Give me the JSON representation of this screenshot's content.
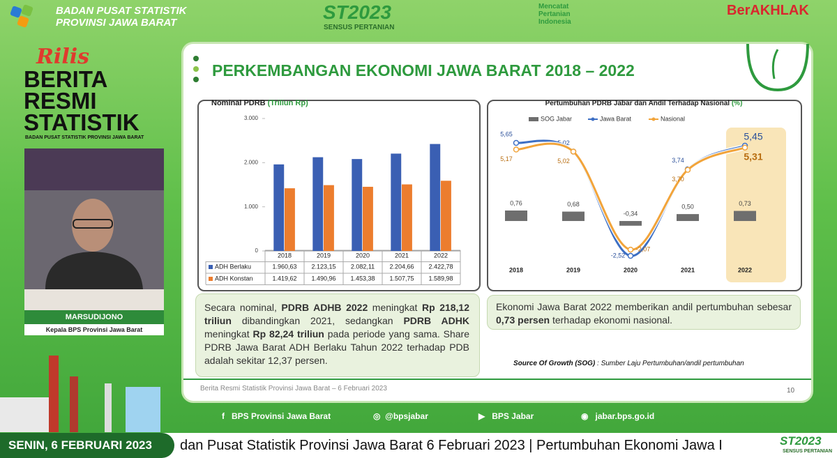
{
  "header": {
    "org": [
      "BADAN PUSAT STATISTIK",
      "PROVINSI JAWA BARAT"
    ],
    "st_logo": "ST2023",
    "st_sub": "SENSUS PERTANIAN",
    "campaign": "Mencatat Pertanian Indonesia",
    "berakhlak": "BerAKHLAK"
  },
  "sidebar": {
    "rilis": "Rilis",
    "brs": [
      "BERITA",
      "RESMI",
      "STATISTIK"
    ],
    "brs_sub": "BADAN PUSAT STATISTIK PROVINSI JAWA BARAT",
    "speaker_name": "MARSUDIJONO",
    "speaker_role": "Kepala BPS Provinsi Jawa Barat"
  },
  "slide": {
    "title": "PERKEMBANGAN EKONOMI JAWA BARAT 2018 – 2022",
    "left_text": [
      {
        "text": "Secara nominal, ",
        "bold": false
      },
      {
        "text": "PDRB ADHB 2022",
        "bold": true
      },
      {
        "text": " meningkat ",
        "bold": false
      },
      {
        "text": "Rp 218,12 triliun",
        "bold": true
      },
      {
        "text": " dibandingkan 2021, sedangkan ",
        "bold": false
      },
      {
        "text": "PDRB ADHK",
        "bold": true
      },
      {
        "text": " meningkat ",
        "bold": false
      },
      {
        "text": "Rp 82,24 triliun",
        "bold": true
      },
      {
        "text": " pada periode yang sama. Share PDRB Jawa Barat ADH Berlaku Tahun 2022 terhadap PDB adalah sekitar 12,37 persen.",
        "bold": false
      }
    ],
    "right_text": [
      {
        "text": "Ekonomi Jawa Barat 2022 memberikan andil pertumbuhan sebesar ",
        "bold": false
      },
      {
        "text": "0,73 persen",
        "bold": true
      },
      {
        "text": " terhadap ekonomi nasional.",
        "bold": false
      }
    ],
    "sog_note": [
      {
        "text": "Source Of Growth (SOG)",
        "bold": true
      },
      {
        "text": " : Sumber Laju Pertumbuhan/andil pertumbuhan",
        "bold": false
      }
    ],
    "source": "Berita Resmi Statistik Provinsi Jawa Barat – 6 Februari 2023",
    "page": "10"
  },
  "chart_data": [
    {
      "type": "bar",
      "title": "Nominal PDRB",
      "title_unit": "(Triliun Rp)",
      "categories": [
        "2018",
        "2019",
        "2020",
        "2021",
        "2022"
      ],
      "series": [
        {
          "name": "ADH Berlaku",
          "color": "#3a5fb3",
          "values": [
            1960.63,
            2123.15,
            2082.11,
            2204.66,
            2422.78
          ],
          "value_labels": [
            "1.960,63",
            "2.123,15",
            "2.082,11",
            "2.204,66",
            "2.422,78"
          ]
        },
        {
          "name": "ADH Konstan",
          "color": "#ec7d2e",
          "values": [
            1419.62,
            1490.96,
            1453.38,
            1507.75,
            1589.98
          ],
          "value_labels": [
            "1.419,62",
            "1.490,96",
            "1.453,38",
            "1.507,75",
            "1.589,98"
          ]
        }
      ],
      "ylim": [
        0,
        3000
      ],
      "yticks": [
        0,
        {
          "value": 1000,
          "label": "1.000"
        },
        {
          "value": 2000,
          "label": "2.000"
        },
        {
          "value": 3000,
          "label": "3.000"
        }
      ],
      "grid": false
    },
    {
      "type": "line",
      "title": "Pertumbuhan PDRB Jabar dan Andil Terhadap Nasional",
      "title_unit": "(%)",
      "categories": [
        "2018",
        "2019",
        "2020",
        "2021",
        "2022"
      ],
      "series": [
        {
          "name": "SOG Jabar",
          "type": "bar",
          "color": "#6e6e6e",
          "values": [
            0.76,
            0.68,
            -0.34,
            0.5,
            0.73
          ],
          "value_labels": [
            "0,76",
            "0,68",
            "-0,34",
            "0,50",
            "0,73"
          ]
        },
        {
          "name": "Jawa Barat",
          "type": "line",
          "color": "#3d6fc4",
          "values": [
            5.65,
            5.02,
            -2.52,
            3.74,
            5.45
          ],
          "value_labels": [
            "5,65",
            "5,02",
            "-2,52",
            "3,74",
            "5,45"
          ]
        },
        {
          "name": "Nasional",
          "type": "line",
          "color": "#f2a43a",
          "values": [
            5.17,
            5.02,
            -2.07,
            3.7,
            5.31
          ],
          "value_labels": [
            "5,17",
            "5,02",
            "-2,07",
            "3,70",
            "5,31"
          ]
        }
      ],
      "highlight_category": "2022"
    }
  ],
  "footer": {
    "social": [
      "BPS Provinsi Jawa Barat",
      "@bpsjabar",
      "BPS Jabar",
      "jabar.bps.go.id"
    ],
    "date": "SENIN, 6 FEBRUARI 2023",
    "ticker": "dan Pusat Statistik Provinsi Jawa Barat 6 Februari 2023 | Pertumbuhan Ekonomi Jawa I",
    "logo": "ST2023",
    "logo_sub": "SENSUS PERTANIAN"
  }
}
